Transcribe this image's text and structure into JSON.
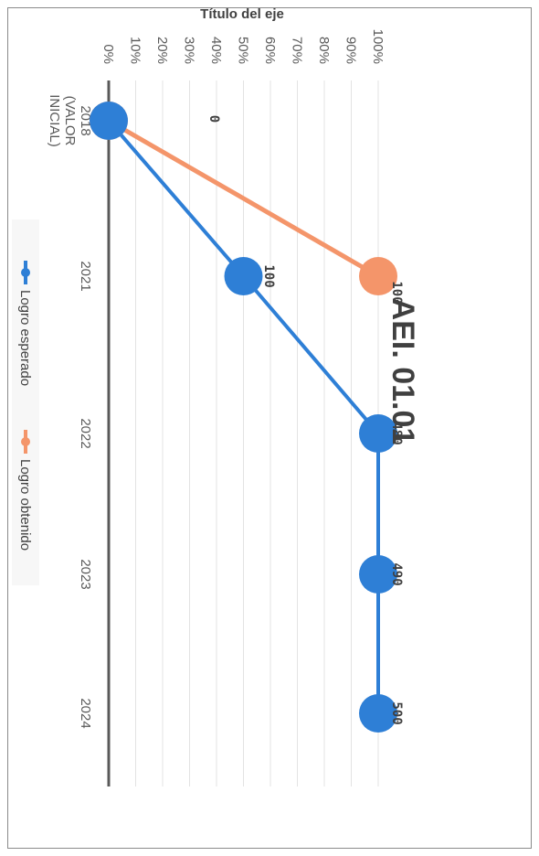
{
  "chart_data": {
    "type": "line",
    "title": "AEI. 01.01",
    "ylabel": "Título del eje",
    "xlabel": "",
    "categories": [
      "2018\n(VALOR\nINICIAL)",
      "2021",
      "2022",
      "2023",
      "2024"
    ],
    "y_ticks": [
      "0%",
      "10%",
      "20%",
      "30%",
      "40%",
      "50%",
      "60%",
      "70%",
      "80%",
      "90%",
      "100%"
    ],
    "ylim": [
      0,
      100
    ],
    "grid": true,
    "legend_position": "bottom",
    "orientation": "rotated-90",
    "series": [
      {
        "name": "Logro esperado",
        "color": "#2e7fd6",
        "x": [
          "2018\n(VALOR\nINICIAL)",
          "2021",
          "2022",
          "2023",
          "2024"
        ],
        "values": [
          0,
          50,
          100,
          100,
          100
        ],
        "labels": [
          "",
          "100",
          "480",
          "490",
          "500"
        ]
      },
      {
        "name": "Logro obtenido",
        "color": "#f4956a",
        "x": [
          "2018\n(VALOR\nINICIAL)",
          "2021"
        ],
        "values": [
          0,
          100
        ],
        "labels": [
          "0",
          "100"
        ]
      }
    ]
  }
}
